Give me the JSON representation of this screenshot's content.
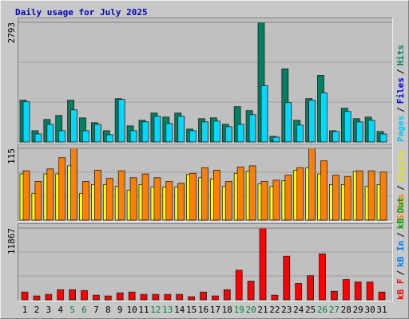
{
  "chart_data": {
    "type": "bar",
    "title": "Daily usage for July 2025",
    "categories": [
      1,
      2,
      3,
      4,
      5,
      6,
      7,
      8,
      9,
      10,
      11,
      12,
      13,
      14,
      15,
      16,
      17,
      18,
      19,
      20,
      21,
      22,
      23,
      24,
      25,
      26,
      27,
      28,
      29,
      30,
      31
    ],
    "weekend_indices": [
      4,
      5,
      11,
      12,
      18,
      19,
      25,
      26
    ],
    "weekend_color": "#008040",
    "legend_separator": "/",
    "panels": [
      {
        "ylim": [
          0,
          2793
        ],
        "yticks": [
          2793
        ],
        "legend": [
          {
            "label": "Pages",
            "color": "#00c8ff"
          },
          {
            "label": "Files",
            "color": "#0000ff"
          },
          {
            "label": "Hits",
            "color": "#008060"
          }
        ],
        "series": [
          {
            "color": "#008060",
            "values": [
              975,
              262,
              525,
              618,
              975,
              562,
              450,
              262,
              1012,
              375,
              506,
              675,
              581,
              675,
              300,
              544,
              562,
              412,
              825,
              731,
              2793,
              131,
              1706,
              506,
              1012,
              1556,
              262,
              787,
              544,
              581,
              244
            ]
          },
          {
            "color": "#00d8ff",
            "values": [
              937,
              187,
              412,
              262,
              750,
              262,
              412,
              169,
              993,
              262,
              469,
              600,
              431,
              600,
              262,
              469,
              487,
              356,
              412,
              637,
              1312,
              112,
              918,
              394,
              975,
              1143,
              244,
              712,
              469,
              506,
              187
            ]
          }
        ]
      },
      {
        "ylim": [
          0,
          115
        ],
        "yticks": [
          115
        ],
        "legend": [
          {
            "label": "Sites",
            "color": "#ff8000"
          },
          {
            "label": "Visits",
            "color": "#e8e800"
          }
        ],
        "series": [
          {
            "color": "#ffff00",
            "values": [
              74,
              43,
              74,
              74,
              87,
              43,
              57,
              57,
              54,
              48,
              57,
              53,
              53,
              53,
              73,
              68,
              66,
              54,
              75,
              78,
              58,
              54,
              63,
              80,
              84,
              74,
              57,
              57,
              78,
              54,
              57
            ]
          },
          {
            "color": "#ff8000",
            "values": [
              79,
              62,
              82,
              100,
              115,
              62,
              80,
              67,
              79,
              68,
              74,
              68,
              62,
              59,
              75,
              84,
              80,
              62,
              85,
              87,
              62,
              64,
              72,
              84,
              115,
              95,
              72,
              70,
              79,
              79,
              77
            ]
          }
        ]
      },
      {
        "ylim": [
          0,
          11867
        ],
        "yticks": [
          11867
        ],
        "legend": [
          {
            "label": "kB F",
            "color": "#ff0000"
          },
          {
            "label": "kB In",
            "color": "#0080ff"
          },
          {
            "label": "kB Out",
            "color": "#00a000"
          }
        ],
        "series": [
          {
            "color": "#ff0000",
            "values": [
              1290,
              645,
              903,
              1677,
              1677,
              1548,
              774,
              645,
              1161,
              1290,
              903,
              903,
              903,
              903,
              516,
              1290,
              645,
              1677,
              4902,
              3096,
              11867,
              774,
              7224,
              2709,
              3999,
              7611,
              1419,
              3354,
              2967,
              2967,
              1290
            ]
          }
        ]
      }
    ]
  }
}
